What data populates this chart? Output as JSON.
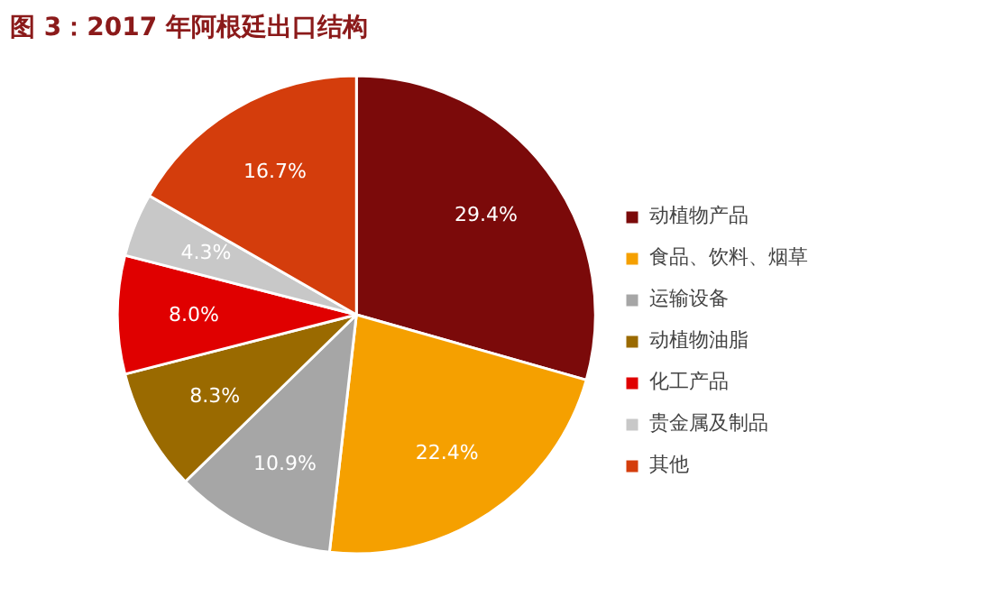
{
  "chart_data": {
    "type": "pie",
    "title": "图 3：2017 年阿根廷出口结构",
    "categories": [
      "动植物产品",
      "食品、饮料、烟草",
      "运输设备",
      "动植物油脂",
      "化工产品",
      "贵金属及制品",
      "其他"
    ],
    "values": [
      29.4,
      22.4,
      10.9,
      8.3,
      8.0,
      4.3,
      16.7
    ],
    "colors": [
      "#7b0a0a",
      "#f5a000",
      "#a6a6a6",
      "#9a6a00",
      "#e00000",
      "#c8c8c8",
      "#d43d0c"
    ],
    "value_labels": [
      "29.4%",
      "22.4%",
      "10.9%",
      "8.3%",
      "8.0%",
      "4.3%",
      "16.7%"
    ],
    "legend": "right"
  }
}
